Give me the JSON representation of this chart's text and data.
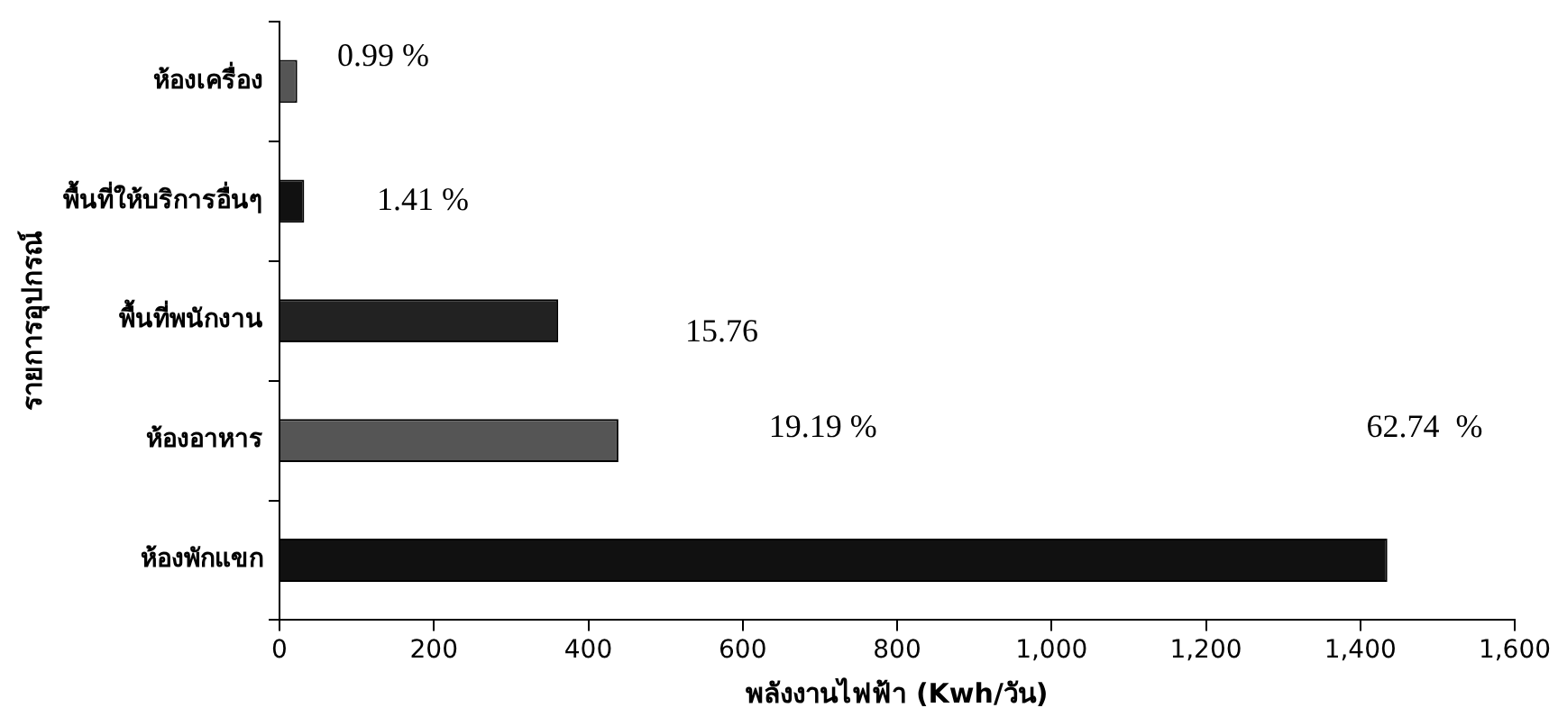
{
  "chart_data": {
    "type": "bar",
    "orientation": "horizontal",
    "xlabel": "พลังงานไฟฟ้า (Kwh/วัน)",
    "ylabel": "รายการอุปกรณ์",
    "categories": [
      "ห้องเครื่อง",
      "พื้นที่ให้บริการอื่นๆ",
      "พื้นที่พนักงาน",
      "ห้องอาหาร",
      "ห้องพักแขก"
    ],
    "values": [
      23,
      32,
      361,
      439,
      1435
    ],
    "colors": [
      "#555555",
      "#111111",
      "#222222",
      "#555555",
      "#111111"
    ],
    "xlim": [
      0,
      1600
    ],
    "xticks": [
      0,
      {
        "value": 200,
        "label": "200"
      },
      {
        "value": 400,
        "label": "400"
      },
      {
        "value": 600,
        "label": "600"
      },
      {
        "value": 800,
        "label": "800"
      },
      {
        "value": 1000,
        "label": "1,000"
      },
      {
        "value": 1200,
        "label": "1,200"
      },
      {
        "value": 1400,
        "label": "1,400"
      },
      {
        "value": 1600,
        "label": "1,600"
      }
    ],
    "grid": false,
    "legend": false,
    "annotations": [
      "0.99 %",
      "1.41 %",
      "15.76",
      "19.19 %",
      "62.74  %"
    ]
  }
}
